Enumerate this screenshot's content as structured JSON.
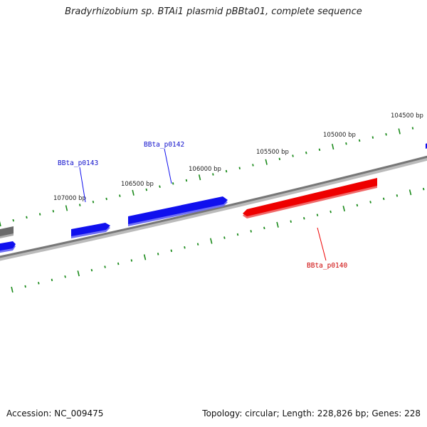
{
  "title": "Bradyrhizobium sp. BTAi1 plasmid pBBta01, complete sequence",
  "accession": "Accession: NC_009475",
  "summary": "Topology: circular; Length: 228,826 bp; Genes: 228",
  "colors": {
    "backbone": "#777777",
    "tick": "#1a8a1a",
    "forward_gene": "#1010ee",
    "reverse_gene": "#ee0000",
    "other_gene": "#6a6a6a"
  },
  "ruler_labels": [
    "104500 bp",
    "105000 bp",
    "105500 bp",
    "106000 bp",
    "106500 bp",
    "107000 bp"
  ],
  "genes": [
    {
      "name": "BBta_p0143",
      "strand": "forward"
    },
    {
      "name": "BBta_p0142",
      "strand": "forward"
    },
    {
      "name": "BBta_p0140",
      "strand": "reverse"
    }
  ]
}
